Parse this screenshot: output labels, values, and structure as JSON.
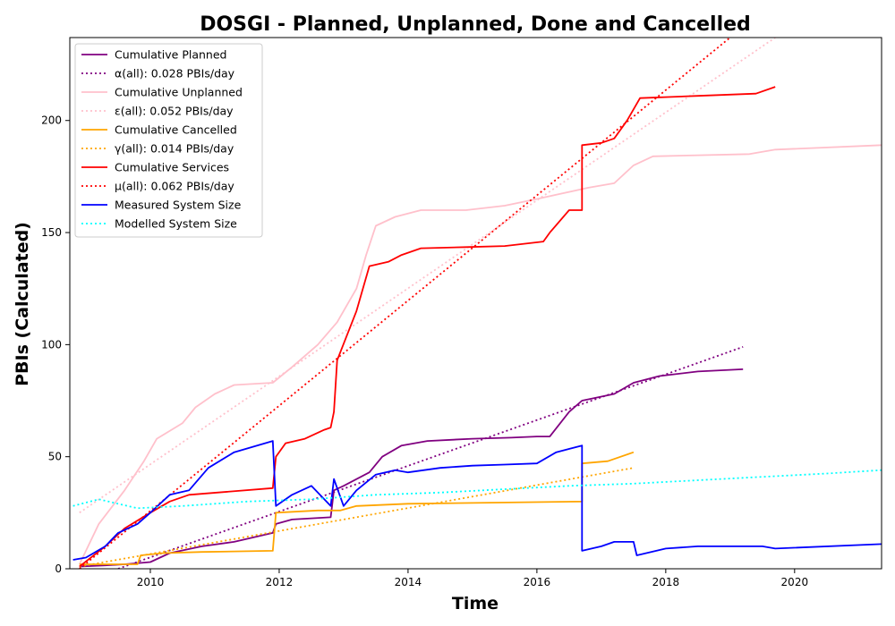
{
  "chart_data": {
    "type": "line",
    "title": "DOSGI - Planned, Unplanned, Done  and Cancelled",
    "xlabel": "Time",
    "ylabel": "PBIs (Calculated)",
    "xlim": [
      2008.75,
      2021.35
    ],
    "ylim": [
      0,
      237
    ],
    "xticks": [
      2010,
      2012,
      2014,
      2016,
      2018,
      2020
    ],
    "yticks": [
      0,
      50,
      100,
      150,
      200
    ],
    "grid": false,
    "legend_position": "top-left",
    "series": [
      {
        "name": "Cumulative Planned",
        "color": "#800080",
        "style": "solid",
        "x": [
          2008.9,
          2009.3,
          2009.6,
          2010.0,
          2010.3,
          2010.8,
          2011.3,
          2011.9,
          2011.95,
          2012.2,
          2012.8,
          2012.85,
          2013.0,
          2013.4,
          2013.6,
          2013.9,
          2014.3,
          2015.0,
          2015.6,
          2016.0,
          2016.2,
          2016.5,
          2016.7,
          2017.2,
          2017.5,
          2017.9,
          2018.5,
          2019.2
        ],
        "y": [
          1,
          1.5,
          2,
          3,
          7,
          10,
          12,
          16,
          20,
          22,
          23,
          35,
          37,
          43,
          50,
          55,
          57,
          58,
          58.5,
          59,
          59,
          70,
          75,
          78,
          83,
          86,
          88,
          89
        ]
      },
      {
        "name": "α(all): 0.028 PBIs/day",
        "color": "#800080",
        "style": "dotted",
        "x": [
          2009.5,
          2019.2
        ],
        "y": [
          0,
          99
        ]
      },
      {
        "name": "Cumulative Unplanned",
        "color": "#ffc0cb",
        "style": "solid",
        "x": [
          2008.9,
          2009.2,
          2009.6,
          2009.9,
          2010.1,
          2010.5,
          2010.7,
          2011.0,
          2011.3,
          2011.9,
          2012.2,
          2012.6,
          2012.9,
          2013.2,
          2013.35,
          2013.5,
          2013.8,
          2014.2,
          2014.9,
          2015.5,
          2016.0,
          2016.8,
          2017.2,
          2017.5,
          2017.8,
          2018.5,
          2019.3,
          2019.7,
          2021.35
        ],
        "y": [
          2,
          20,
          35,
          48,
          58,
          65,
          72,
          78,
          82,
          83,
          90,
          100,
          110,
          125,
          140,
          153,
          157,
          160,
          160,
          162,
          165,
          170,
          172,
          180,
          184,
          184.5,
          185,
          187,
          189
        ]
      },
      {
        "name": "ε(all): 0.052 PBIs/day",
        "color": "#ffc0cb",
        "style": "dotted",
        "x": [
          2008.9,
          2019.7
        ],
        "y": [
          25,
          237
        ]
      },
      {
        "name": "Cumulative Cancelled",
        "color": "#ffa500",
        "style": "solid",
        "x": [
          2008.9,
          2009.8,
          2009.85,
          2010.2,
          2010.8,
          2011.9,
          2011.95,
          2012.6,
          2012.95,
          2013.2,
          2014.0,
          2016.7,
          2016.7,
          2017.1,
          2017.5
        ],
        "y": [
          2,
          2,
          6,
          7,
          7.5,
          8,
          25,
          26,
          26,
          28,
          29,
          30,
          47,
          48,
          52
        ]
      },
      {
        "name": "γ(all): 0.014 PBIs/day",
        "color": "#ffa500",
        "style": "dotted",
        "x": [
          2008.9,
          2017.5
        ],
        "y": [
          1,
          45
        ]
      },
      {
        "name": "Cumulative Services",
        "color": "#ff0000",
        "style": "solid",
        "x": [
          2008.9,
          2009.3,
          2009.6,
          2010.0,
          2010.3,
          2010.6,
          2011.9,
          2011.95,
          2012.1,
          2012.4,
          2012.7,
          2012.8,
          2012.85,
          2012.9,
          2013.2,
          2013.4,
          2013.7,
          2013.9,
          2014.2,
          2014.9,
          2015.5,
          2016.1,
          2016.2,
          2016.5,
          2016.7,
          2016.7,
          2017.0,
          2017.2,
          2017.4,
          2017.6,
          2018.5,
          2019.4,
          2019.7
        ],
        "y": [
          1,
          10,
          18,
          25,
          30,
          33,
          36,
          50,
          56,
          58,
          62,
          63,
          70,
          93,
          115,
          135,
          137,
          140,
          143,
          143.5,
          144,
          146,
          150,
          160,
          160,
          189,
          190,
          192,
          200,
          210,
          211,
          212,
          215
        ]
      },
      {
        "name": "μ(all): 0.062 PBIs/day",
        "color": "#ff0000",
        "style": "dotted",
        "x": [
          2008.9,
          2019.0
        ],
        "y": [
          0,
          237
        ]
      },
      {
        "name": "Measured System Size",
        "color": "#0000ff",
        "style": "solid",
        "x": [
          2008.8,
          2009.0,
          2009.3,
          2009.5,
          2009.8,
          2010.0,
          2010.3,
          2010.6,
          2010.9,
          2011.3,
          2011.9,
          2011.95,
          2012.2,
          2012.5,
          2012.8,
          2012.85,
          2013.0,
          2013.2,
          2013.5,
          2013.8,
          2014.0,
          2014.5,
          2015.0,
          2015.5,
          2016.0,
          2016.3,
          2016.7,
          2016.7,
          2017.0,
          2017.2,
          2017.5,
          2017.55,
          2018.0,
          2018.5,
          2019.5,
          2019.7,
          2021.35
        ],
        "y": [
          4,
          5,
          10,
          16,
          20,
          25,
          33,
          35,
          45,
          52,
          57,
          28,
          33,
          37,
          28,
          40,
          28,
          35,
          42,
          44,
          43,
          45,
          46,
          46.5,
          47,
          52,
          55,
          8,
          10,
          12,
          12,
          6,
          9,
          10,
          10,
          9,
          11
        ]
      },
      {
        "name": "Modelled System Size",
        "color": "#00ffff",
        "style": "dotted",
        "x": [
          2008.8,
          2009.2,
          2009.8,
          2010.5,
          2011.5,
          2012.5,
          2013.5,
          2014.5,
          2015.5,
          2016.5,
          2017.5,
          2018.5,
          2019.5,
          2020.5,
          2021.35
        ],
        "y": [
          28,
          31,
          27,
          28,
          30,
          31,
          33,
          34,
          35.5,
          37,
          38,
          39.5,
          41,
          42.5,
          44
        ]
      }
    ]
  }
}
